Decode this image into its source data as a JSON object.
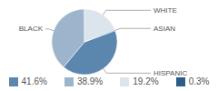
{
  "chart_data": {
    "type": "pie",
    "categories": [
      "HISPANIC",
      "BLACK",
      "WHITE",
      "ASIAN"
    ],
    "values": [
      41.6,
      38.9,
      19.2,
      0.3
    ],
    "value_labels": [
      "41.6%",
      "38.9%",
      "19.2%",
      "0.3%"
    ],
    "colors": [
      "#5b86ad",
      "#9db5cc",
      "#dce4ec",
      "#2d5d8a"
    ],
    "legend": "bottom"
  }
}
